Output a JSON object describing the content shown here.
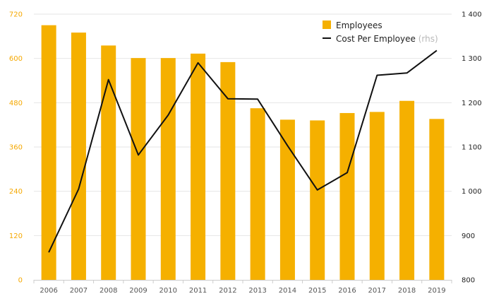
{
  "chart_data": {
    "type": "bar",
    "categories": [
      "2006",
      "2007",
      "2008",
      "2009",
      "2010",
      "2011",
      "2012",
      "2013",
      "2014",
      "2015",
      "2016",
      "2017",
      "2018",
      "2019"
    ],
    "series": [
      {
        "name": "Employees",
        "type": "bar",
        "axis": "left",
        "color": "#f5b000",
        "values": [
          690,
          670,
          635,
          601,
          601,
          613,
          590,
          465,
          434,
          432,
          452,
          455,
          485,
          436
        ]
      },
      {
        "name": "Cost Per Employee",
        "note": "(rhs)",
        "type": "line",
        "axis": "right",
        "color": "#111111",
        "values": [
          862,
          1005,
          1252,
          1082,
          1172,
          1290,
          1209,
          1208,
          1103,
          1003,
          1042,
          1262,
          1267,
          1318
        ]
      }
    ],
    "left_axis": {
      "min": 0,
      "max": 720,
      "ticks": [
        "0",
        "120",
        "240",
        "360",
        "480",
        "600",
        "720"
      ],
      "color": "#f5a800"
    },
    "right_axis": {
      "min": 800,
      "max": 1400,
      "ticks": [
        "800",
        "900",
        "1 000",
        "1 100",
        "1 200",
        "1 300",
        "1 400"
      ]
    },
    "grid": true,
    "legend_position": "top-right"
  }
}
